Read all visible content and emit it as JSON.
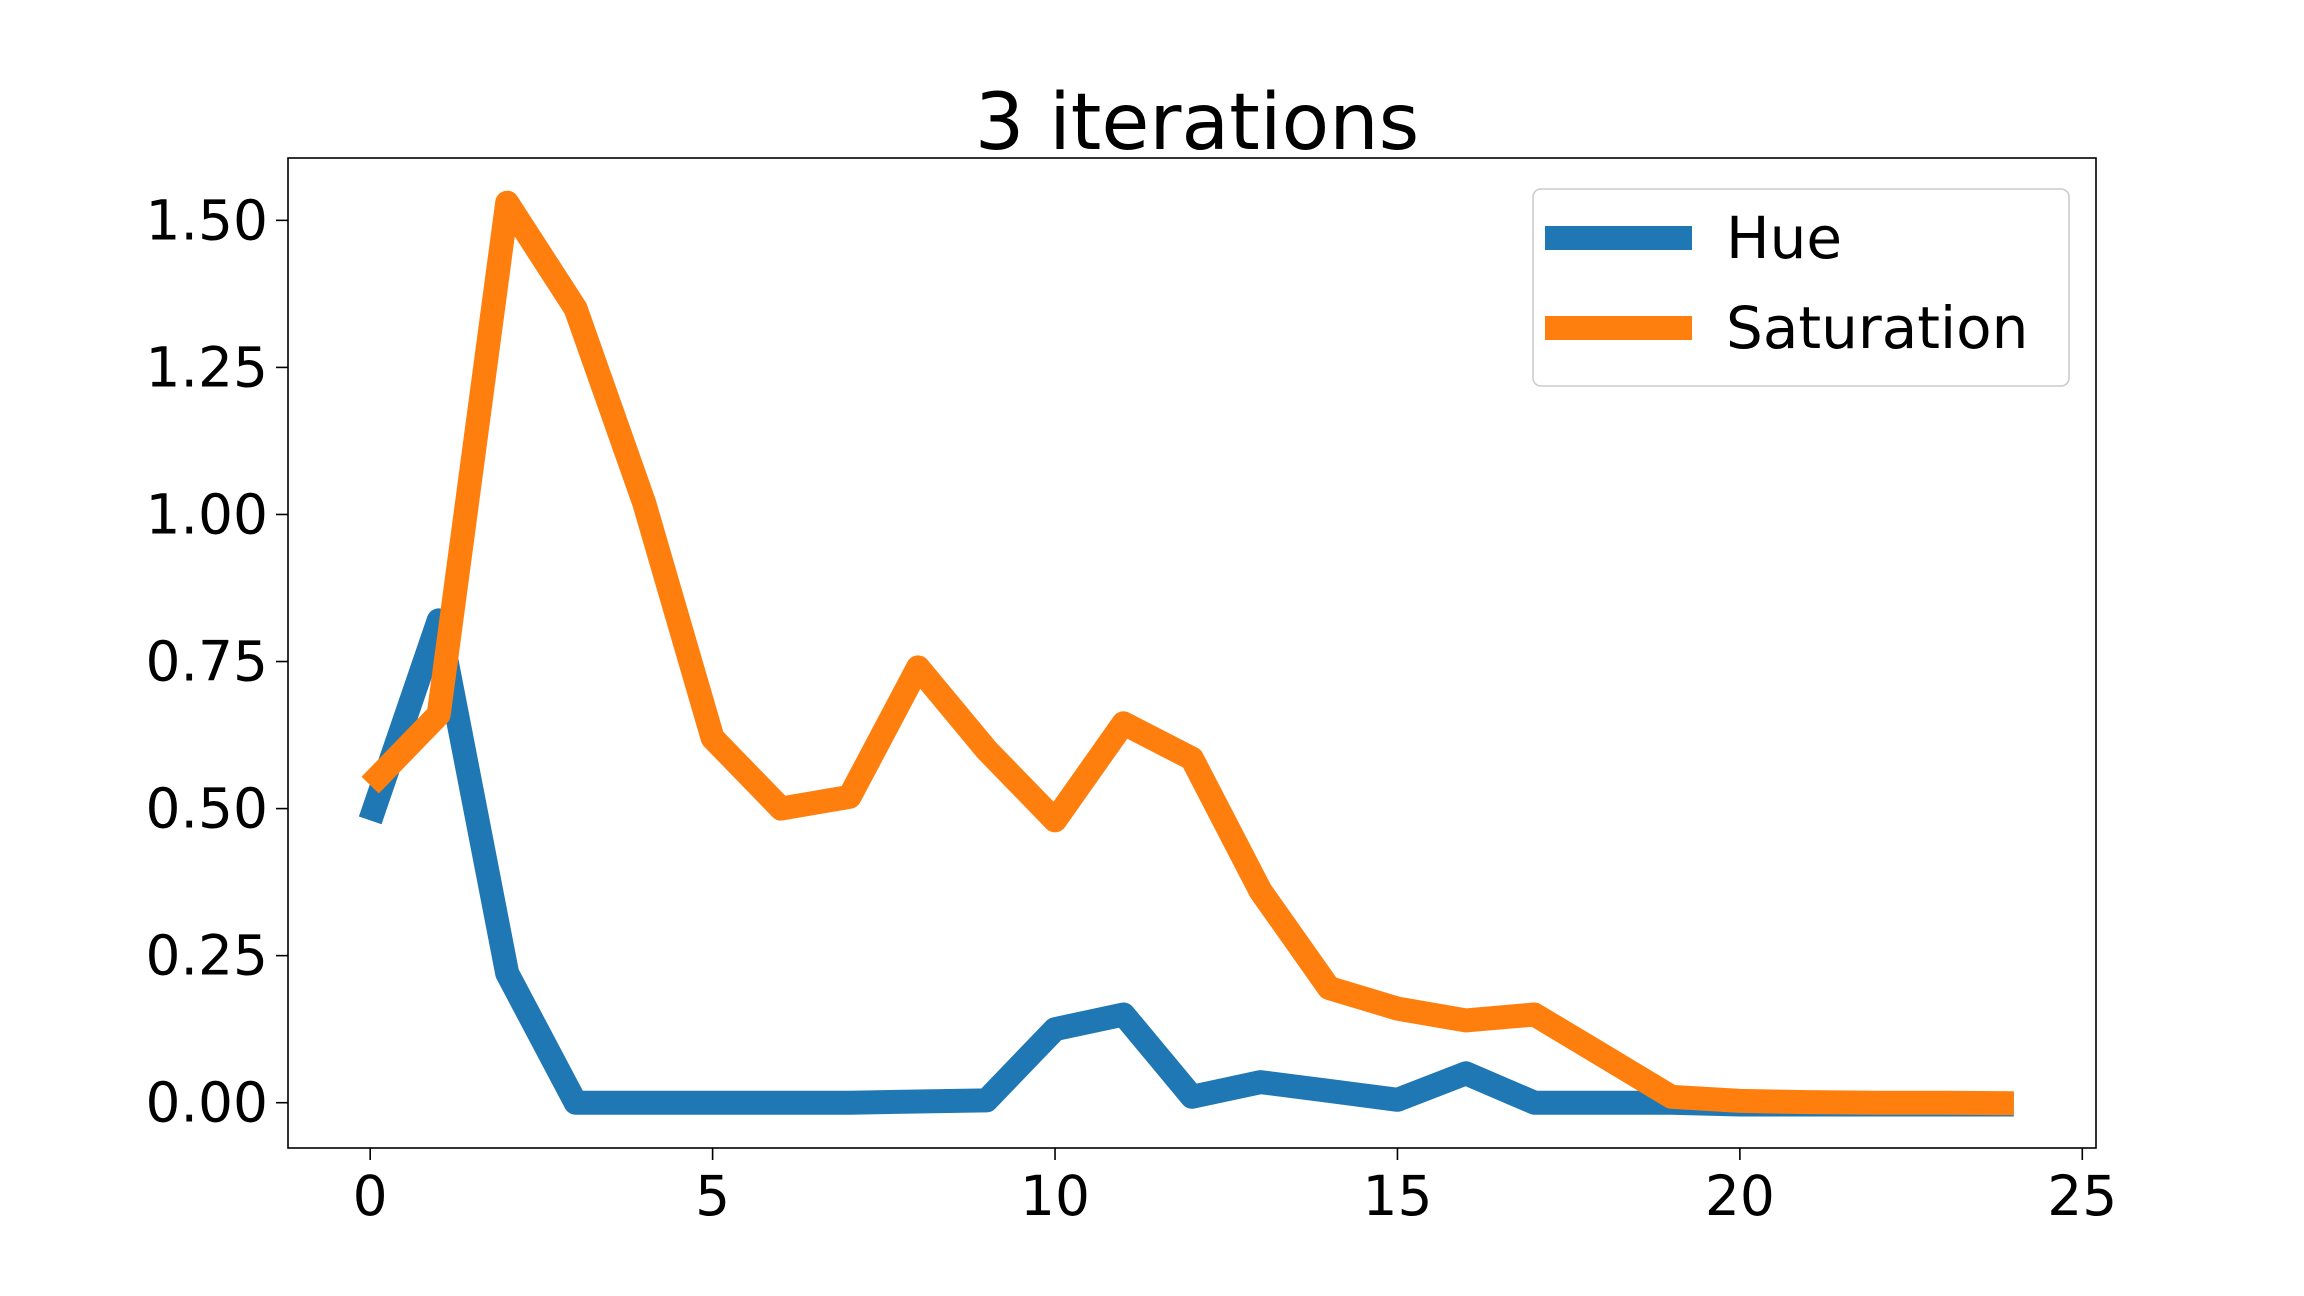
{
  "chart_data": {
    "type": "line",
    "title": "3 iterations",
    "xlabel": "",
    "ylabel": "",
    "xlim": [
      -1.2,
      25.2
    ],
    "ylim": [
      -0.077,
      1.606
    ],
    "xticks": [
      0,
      5,
      10,
      15,
      20,
      25
    ],
    "xtick_labels": [
      "0",
      "5",
      "10",
      "15",
      "20",
      "25"
    ],
    "yticks": [
      0,
      0.25,
      0.5,
      0.75,
      1.0,
      1.25,
      1.5
    ],
    "ytick_labels": [
      "0.00",
      "0.25",
      "0.50",
      "0.75",
      "1.00",
      "1.25",
      "1.50"
    ],
    "grid": false,
    "legend": {
      "placement": "top-right"
    },
    "x": [
      0,
      1,
      2,
      3,
      4,
      5,
      6,
      7,
      8,
      9,
      10,
      11,
      12,
      13,
      14,
      15,
      16,
      17,
      18,
      19,
      20,
      21,
      22,
      23,
      24
    ],
    "series": [
      {
        "name": "Hue",
        "color": "#1f77b4",
        "values": [
          0.48,
          0.82,
          0.22,
          0.0,
          0.0,
          0.0,
          0.0,
          0.0,
          0.002,
          0.004,
          0.125,
          0.15,
          0.01,
          0.035,
          0.02,
          0.005,
          0.05,
          0.0,
          0.0,
          0.0,
          -0.003,
          -0.003,
          -0.003,
          -0.003,
          -0.003
        ]
      },
      {
        "name": "Saturation",
        "color": "#ff7f0e",
        "values": [
          0.54,
          0.66,
          1.53,
          1.35,
          1.02,
          0.62,
          0.5,
          0.52,
          0.74,
          0.6,
          0.48,
          0.645,
          0.585,
          0.36,
          0.195,
          0.16,
          0.14,
          0.15,
          0.08,
          0.01,
          0.003,
          0.001,
          0.0,
          0.0,
          -0.001
        ]
      }
    ]
  }
}
